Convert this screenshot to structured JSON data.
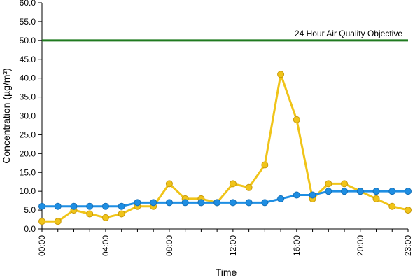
{
  "chart_data": {
    "type": "line",
    "title": "",
    "xlabel": "Time",
    "ylabel": "Concentration (µg/m³)",
    "ylim": [
      0,
      60
    ],
    "yticks": [
      "0.0",
      "5.0",
      "10.0",
      "15.0",
      "20.0",
      "25.0",
      "30.0",
      "35.0",
      "40.0",
      "45.0",
      "50.0",
      "55.0",
      "60.0"
    ],
    "x": [
      "00:00",
      "01:00",
      "02:00",
      "03:00",
      "04:00",
      "05:00",
      "06:00",
      "07:00",
      "08:00",
      "09:00",
      "10:00",
      "11:00",
      "12:00",
      "13:00",
      "14:00",
      "15:00",
      "16:00",
      "17:00",
      "18:00",
      "19:00",
      "20:00",
      "21:00",
      "22:00",
      "23:00"
    ],
    "xtick_labels": [
      "00:00",
      "04:00",
      "08:00",
      "12:00",
      "16:00",
      "20:00",
      "23:00"
    ],
    "grid": false,
    "legend": "none",
    "series": [
      {
        "color": "#f0c419",
        "values": [
          2,
          2,
          5,
          4,
          3,
          4,
          6,
          6,
          12,
          8,
          8,
          7,
          12,
          11,
          17,
          41,
          29,
          8,
          12,
          12,
          10,
          8,
          6,
          5
        ]
      },
      {
        "color": "#1e8ee3",
        "values": [
          6,
          6,
          6,
          6,
          6,
          6,
          7,
          7,
          7,
          7,
          7,
          7,
          7,
          7,
          7,
          8,
          9,
          9,
          10,
          10,
          10,
          10,
          10,
          10
        ]
      }
    ],
    "reference_line": {
      "value": 50,
      "label": "24 Hour Air Quality Objective",
      "color": "#1f7a1f"
    }
  }
}
